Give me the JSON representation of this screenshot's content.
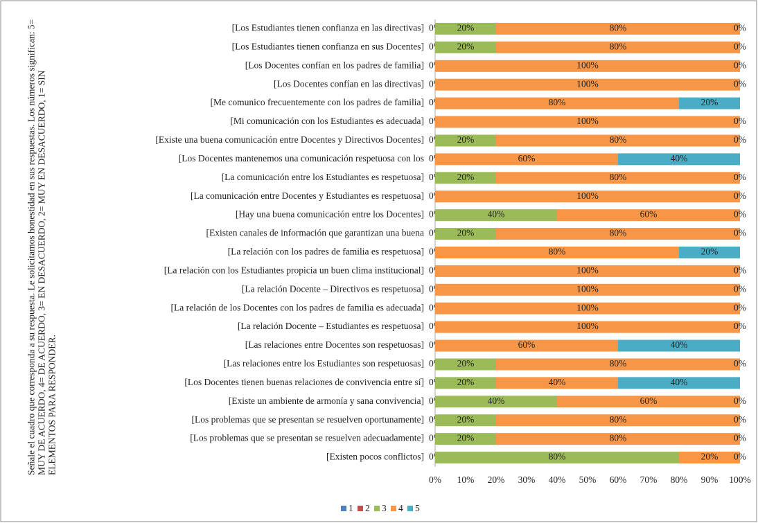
{
  "chart_data": {
    "type": "stacked_barh",
    "ylabel": "Señale el cuadro que corresponda a su respuesta. Le solicitamos honestidad en sus respuestas. Los números significan: 5= MUY DE ACUERDO, 4= DE ACUERDO, 3= EN DESACUERDO, 2= MUY EN DESACUERDO, 1= SIN ELEMENTOS PARA RESPONDER.",
    "categories": [
      "[Los Estudiantes tienen confianza en las directivas]",
      "[Los Estudiantes tienen confianza en sus Docentes]",
      "[Los Docentes confían en los padres de familia]",
      "[Los Docentes confían en las directivas]",
      "[Me comunico frecuentemente con los padres de familia]",
      "[Mi comunicación con los Estudiantes es adecuada]",
      "[Existe una buena comunicación entre Docentes y Directivos Docentes]",
      "[Los Docentes mantenemos una comunicación respetuosa con los",
      "[La comunicación entre los Estudiantes es respetuosa]",
      "[La comunicación entre Docentes y Estudiantes es respetuosa]",
      "[Hay una buena comunicación entre los Docentes]",
      "[Existen canales de información que garantizan una buena",
      "[La relación con los padres de familia es respetuosa]",
      "[La relación con los Estudiantes propicia un buen clima institucional]",
      "[La relación Docente – Directivos es respetuosa]",
      "[La relación de los Docentes con los padres de familia es adecuada]",
      "[La relación Docente – Estudiantes es respetuosa]",
      "[Las relaciones entre Docentes son respetuosas]",
      "[Las relaciones entre los Estudiantes son respetuosas]",
      "[Los Docentes tienen buenas relaciones de convivencia entre sí]",
      "[Existe un ambiente de armonía y sana convivencia]",
      "[Los problemas que se presentan se resuelven oportunamente]",
      "[Los problemas que se presentan se resuelven adecuadamente]",
      "[Existen pocos conflictos]"
    ],
    "series": [
      {
        "name": "1",
        "color": "#4f81bd",
        "values": [
          0,
          0,
          0,
          0,
          0,
          0,
          0,
          0,
          0,
          0,
          0,
          0,
          0,
          0,
          0,
          0,
          0,
          0,
          0,
          0,
          0,
          0,
          0,
          0
        ],
        "value_labels": [
          "0%",
          "0%",
          "0%",
          "0%",
          "0%",
          "0%",
          "0%",
          "0%",
          "0%",
          "0%",
          "0%",
          "0%",
          "0%",
          "0%",
          "0%",
          "0%",
          "0%",
          "0%",
          "0%",
          "0%",
          "0%",
          "0%",
          "0%",
          "0%"
        ]
      },
      {
        "name": "2",
        "color": "#c0504d",
        "values": [
          0,
          0,
          0,
          0,
          0,
          0,
          0,
          0,
          0,
          0,
          0,
          0,
          0,
          0,
          0,
          0,
          0,
          0,
          0,
          0,
          0,
          0,
          0,
          0
        ],
        "value_labels": [
          null,
          null,
          null,
          null,
          null,
          null,
          null,
          null,
          null,
          null,
          null,
          null,
          null,
          null,
          null,
          null,
          null,
          null,
          null,
          null,
          null,
          null,
          null,
          null
        ]
      },
      {
        "name": "3",
        "color": "#9bbb59",
        "values": [
          20,
          20,
          0,
          0,
          0,
          0,
          20,
          0,
          20,
          0,
          40,
          20,
          0,
          0,
          0,
          0,
          0,
          0,
          20,
          20,
          40,
          20,
          20,
          80
        ],
        "value_labels": [
          "20%",
          "20%",
          null,
          null,
          null,
          null,
          "20%",
          null,
          "20%",
          null,
          "40%",
          "20%",
          null,
          null,
          null,
          null,
          null,
          null,
          "20%",
          "20%",
          "40%",
          "20%",
          "20%",
          "80%"
        ]
      },
      {
        "name": "4",
        "color": "#f79646",
        "values": [
          80,
          80,
          100,
          100,
          80,
          100,
          80,
          60,
          80,
          100,
          60,
          80,
          80,
          100,
          100,
          100,
          100,
          60,
          80,
          40,
          60,
          80,
          80,
          20
        ],
        "value_labels": [
          "80%",
          "80%",
          "100%",
          "100%",
          "80%",
          "100%",
          "80%",
          "60%",
          "80%",
          "100%",
          "60%",
          "80%",
          "80%",
          "100%",
          "100%",
          "100%",
          "100%",
          "60%",
          "80%",
          "40%",
          "60%",
          "80%",
          "80%",
          "20%"
        ]
      },
      {
        "name": "5",
        "color": "#4bacc6",
        "values": [
          0,
          0,
          0,
          0,
          20,
          0,
          0,
          40,
          0,
          0,
          0,
          0,
          20,
          0,
          0,
          0,
          0,
          40,
          0,
          40,
          0,
          0,
          0,
          0
        ],
        "value_labels": [
          "0%",
          "0%",
          "0%",
          "0%",
          "20%",
          "0%",
          "0%",
          "40%",
          "0%",
          "0%",
          "0%",
          "0%",
          "20%",
          "0%",
          "0%",
          "0%",
          "0%",
          "40%",
          "0%",
          "40%",
          "0%",
          "0%",
          "0%",
          "0%"
        ]
      }
    ],
    "xlim": [
      0,
      100
    ],
    "xticks": [
      {
        "value": 0,
        "label": "0%"
      },
      {
        "value": 10,
        "label": "10%"
      },
      {
        "value": 20,
        "label": "20%"
      },
      {
        "value": 30,
        "label": "30%"
      },
      {
        "value": 40,
        "label": "40%"
      },
      {
        "value": 50,
        "label": "50%"
      },
      {
        "value": 60,
        "label": "60%"
      },
      {
        "value": 70,
        "label": "70%"
      },
      {
        "value": 80,
        "label": "80%"
      },
      {
        "value": 90,
        "label": "90%"
      },
      {
        "value": 100,
        "label": "100%"
      }
    ],
    "legend": "bottom"
  }
}
